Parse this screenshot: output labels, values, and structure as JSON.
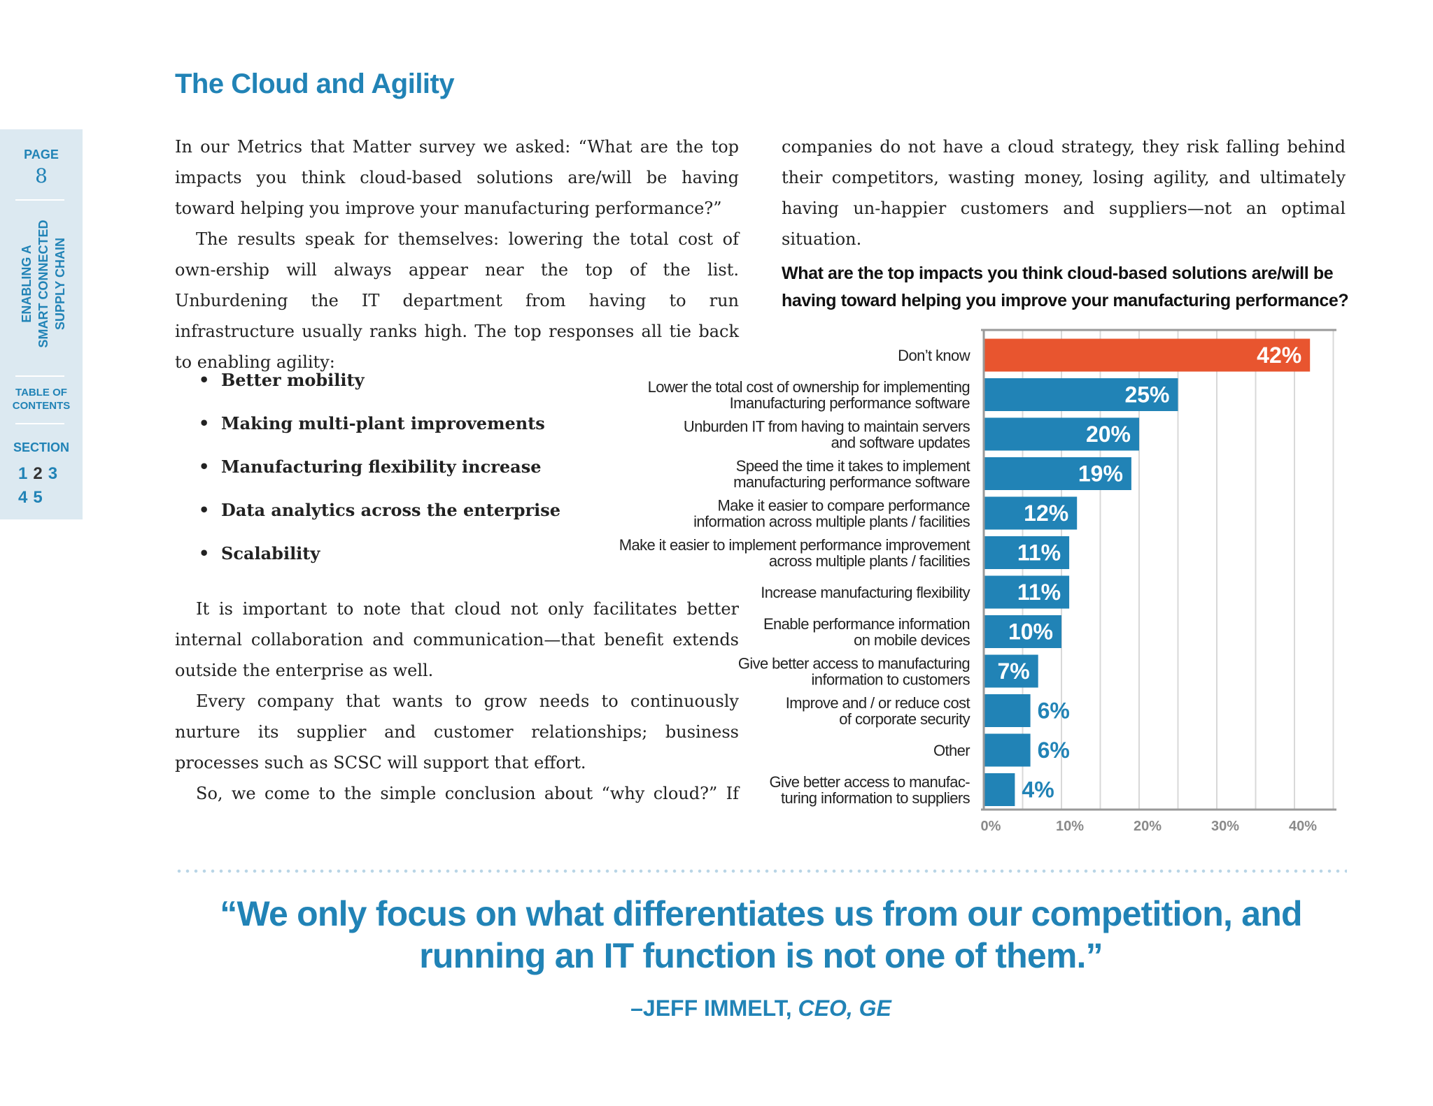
{
  "sidebar": {
    "page_label": "PAGE",
    "page_number": "8",
    "doc_title": "ENABLING A\nSMART CONNECTED\nSUPPLY CHAIN",
    "toc_label": "TABLE OF\nCONTENTS",
    "section_label": "SECTION",
    "sections": [
      "1",
      "2",
      "3",
      "4",
      "5"
    ],
    "current_section": "2",
    "accent_color": "#2183b6",
    "background_color": "#dce9f1"
  },
  "heading": "The Cloud and Agility",
  "body": {
    "para1": "In our Metrics that Matter survey we asked: “What are the top impacts you think cloud-based solutions are/will be having toward helping you improve your manufacturing performance?”",
    "para2": "The results speak for themselves: lowering the total cost of own-ership will always appear near the top of the list. Unburdening the IT department from having to run infrastructure usually ranks high. The top responses all tie back to enabling agility:",
    "bullets": [
      "Better mobility",
      "Making multi-plant improvements",
      "Manufacturing flexibility increase",
      "Data analytics across the enterprise",
      "Scalability"
    ],
    "para3": "It is important to note that cloud not only facilitates better internal collaboration and communication—that benefit extends outside the enterprise as well.",
    "para4": "Every company that wants to grow needs to continuously nurture its supplier and customer relationships; business processes such as SCSC will support that effort.",
    "para5": "So, we come to the simple conclusion about “why cloud?” If",
    "para6": "companies do not have a cloud strategy, they risk falling behind their competitors, wasting money, losing agility, and ultimately having un-happier customers and suppliers—not an optimal situation."
  },
  "chart_data": {
    "type": "bar",
    "orientation": "horizontal",
    "title": "What are the top impacts you think cloud-based solutions are/will be having toward helping you improve your manufacturing performance?",
    "categories": [
      "Don’t know",
      "Lower the total cost of ownership for implementing\nImanufacturing performance software",
      "Unburden IT from having to maintain servers\nand software updates",
      "Speed the time it takes to implement\nmanufacturing performance software",
      "Make it easier to compare performance\ninformation across multiple plants / facilities",
      "Make it easier to implement performance improvement\nacross multiple plants / facilities",
      "Increase manufacturing flexibility",
      "Enable performance information\non mobile devices",
      "Give better access to manufacturing\ninformation to customers",
      "Improve and / or reduce cost\nof corporate security",
      "Other",
      "Give better access to manufac-\nturing information to suppliers"
    ],
    "values": [
      42,
      25,
      20,
      19,
      12,
      11,
      11,
      10,
      7,
      6,
      6,
      4
    ],
    "value_labels": [
      "42%",
      "25%",
      "20%",
      "19%",
      "12%",
      "11%",
      "11%",
      "10%",
      "7%",
      "6%",
      "6%",
      "4%"
    ],
    "xlim": [
      0,
      45
    ],
    "x_ticks": [
      "0%",
      "10%",
      "20%",
      "30%",
      "40%"
    ],
    "x_tick_values": [
      0,
      10,
      20,
      30,
      40
    ],
    "grid": true,
    "highlight_color": "#e8552f",
    "bar_color": "#2183b6",
    "grid_color": "#d8d8d8",
    "axis_color": "#999999",
    "tick_color": "#8a8a8a"
  },
  "quote": {
    "text": "“We only focus on what differentiates us from our competition, and running an IT function is not one of them.”",
    "attribution_name": "–JEFF IMMELT,",
    "attribution_title": "CEO, GE"
  }
}
